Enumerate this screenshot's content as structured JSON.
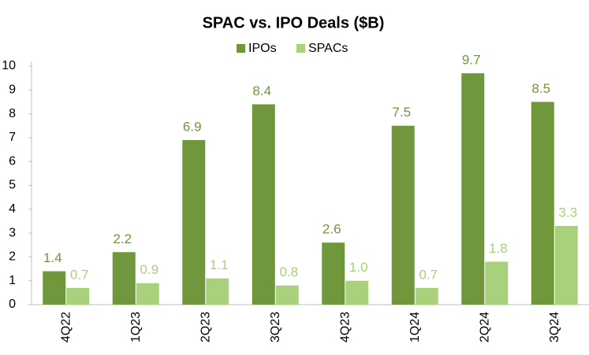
{
  "chart_data": {
    "type": "bar",
    "title": "SPAC vs. IPO Deals ($B)",
    "categories": [
      "4Q22",
      "1Q23",
      "2Q23",
      "3Q23",
      "4Q23",
      "1Q24",
      "2Q24",
      "3Q24"
    ],
    "series": [
      {
        "name": "IPOs",
        "color": "#70973c",
        "values": [
          1.4,
          2.2,
          6.9,
          8.4,
          2.6,
          7.5,
          9.7,
          8.5
        ],
        "value_labels": [
          "1.4",
          "2.2",
          "6.9",
          "8.4",
          "2.6",
          "7.5",
          "9.7",
          "8.5"
        ]
      },
      {
        "name": "SPACs",
        "color": "#a9d07a",
        "values": [
          0.7,
          0.9,
          1.1,
          0.8,
          1.0,
          0.7,
          1.8,
          3.3
        ],
        "value_labels": [
          "0.7",
          "0.9",
          "1.1",
          "0.8",
          "1.0",
          "0.7",
          "1.8",
          "3.3"
        ]
      }
    ],
    "ylim": [
      0,
      10
    ],
    "yticks": [
      0,
      1,
      2,
      3,
      4,
      5,
      6,
      7,
      8,
      9,
      10
    ],
    "grid": false,
    "legend": "top"
  }
}
